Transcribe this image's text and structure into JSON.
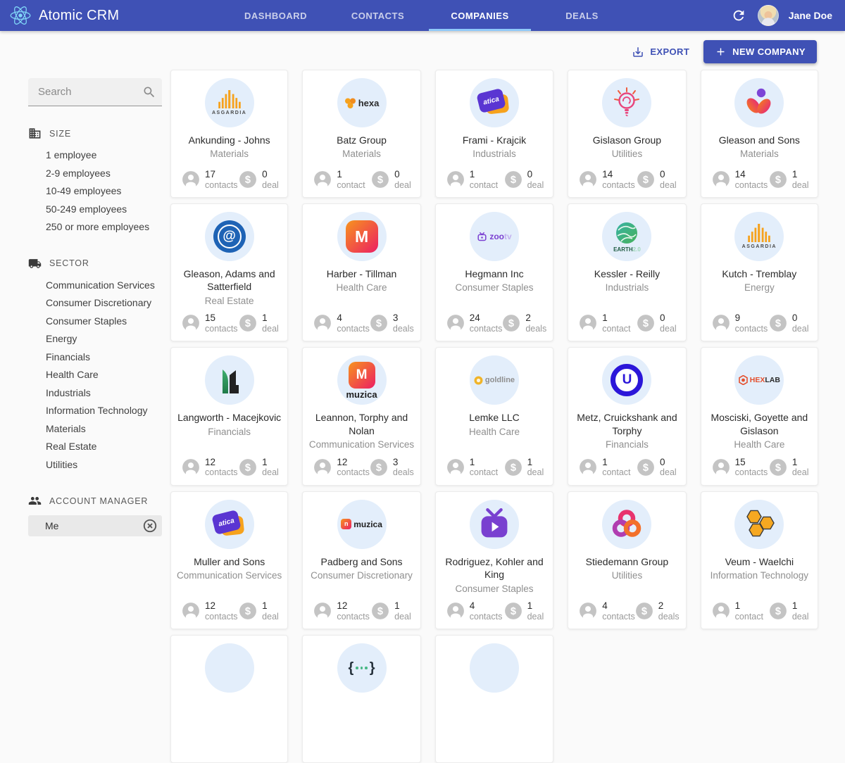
{
  "app": {
    "title": "Atomic CRM",
    "user_name": "Jane Doe"
  },
  "nav": {
    "tabs": [
      {
        "label": "DASHBOARD",
        "active": false
      },
      {
        "label": "CONTACTS",
        "active": false
      },
      {
        "label": "COMPANIES",
        "active": true
      },
      {
        "label": "DEALS",
        "active": false
      }
    ]
  },
  "toolbar": {
    "export_label": "EXPORT",
    "new_company_label": "NEW COMPANY"
  },
  "sidebar": {
    "search_placeholder": "Search",
    "size_section": {
      "title": "SIZE",
      "items": [
        "1 employee",
        "2-9 employees",
        "10-49 employees",
        "50-249 employees",
        "250 or more employees"
      ]
    },
    "sector_section": {
      "title": "SECTOR",
      "items": [
        "Communication Services",
        "Consumer Discretionary",
        "Consumer Staples",
        "Energy",
        "Financials",
        "Health Care",
        "Industrials",
        "Information Technology",
        "Materials",
        "Real Estate",
        "Utilities"
      ]
    },
    "account_manager_section": {
      "title": "ACCOUNT MANAGER",
      "selected_filter": "Me"
    }
  },
  "companies": [
    {
      "name": "Ankunding - Johns",
      "sector": "Materials",
      "contacts": "17",
      "contacts_label": "contacts",
      "deals": "0",
      "deals_label": "deal",
      "logo": "asgardia"
    },
    {
      "name": "Batz Group",
      "sector": "Materials",
      "contacts": "1",
      "contacts_label": "contact",
      "deals": "0",
      "deals_label": "deal",
      "logo": "hexa"
    },
    {
      "name": "Frami - Krajcik",
      "sector": "Industrials",
      "contacts": "1",
      "contacts_label": "contact",
      "deals": "0",
      "deals_label": "deal",
      "logo": "atica"
    },
    {
      "name": "Gislason Group",
      "sector": "Utilities",
      "contacts": "14",
      "contacts_label": "contacts",
      "deals": "0",
      "deals_label": "deal",
      "logo": "bulb"
    },
    {
      "name": "Gleason and Sons",
      "sector": "Materials",
      "contacts": "14",
      "contacts_label": "contacts",
      "deals": "1",
      "deals_label": "deal",
      "logo": "flower"
    },
    {
      "name": "Gleason, Adams and Satterfield",
      "sector": "Real Estate",
      "contacts": "15",
      "contacts_label": "contacts",
      "deals": "1",
      "deals_label": "deal",
      "logo": "gear-a"
    },
    {
      "name": "Harber - Tillman",
      "sector": "Health Care",
      "contacts": "4",
      "contacts_label": "contacts",
      "deals": "3",
      "deals_label": "deals",
      "logo": "muzica"
    },
    {
      "name": "Hegmann Inc",
      "sector": "Consumer Staples",
      "contacts": "24",
      "contacts_label": "contacts",
      "deals": "2",
      "deals_label": "deals",
      "logo": "zootv-text"
    },
    {
      "name": "Kessler - Reilly",
      "sector": "Industrials",
      "contacts": "1",
      "contacts_label": "contact",
      "deals": "0",
      "deals_label": "deal",
      "logo": "earth"
    },
    {
      "name": "Kutch - Tremblay",
      "sector": "Energy",
      "contacts": "9",
      "contacts_label": "contacts",
      "deals": "0",
      "deals_label": "deal",
      "logo": "asgardia"
    },
    {
      "name": "Langworth - Macejkovic",
      "sector": "Financials",
      "contacts": "12",
      "contacts_label": "contacts",
      "deals": "1",
      "deals_label": "deal",
      "logo": "buildings"
    },
    {
      "name": "Leannon, Torphy and Nolan",
      "sector": "Communication Services",
      "contacts": "12",
      "contacts_label": "contacts",
      "deals": "3",
      "deals_label": "deals",
      "logo": "muzica-text"
    },
    {
      "name": "Lemke LLC",
      "sector": "Health Care",
      "contacts": "1",
      "contacts_label": "contact",
      "deals": "1",
      "deals_label": "deal",
      "logo": "goldline"
    },
    {
      "name": "Metz, Cruickshank and Torphy",
      "sector": "Financials",
      "contacts": "1",
      "contacts_label": "contact",
      "deals": "0",
      "deals_label": "deal",
      "logo": "u-ring"
    },
    {
      "name": "Mosciski, Goyette and Gislason",
      "sector": "Health Care",
      "contacts": "15",
      "contacts_label": "contacts",
      "deals": "1",
      "deals_label": "deal",
      "logo": "hexlab"
    },
    {
      "name": "Muller and Sons",
      "sector": "Communication Services",
      "contacts": "12",
      "contacts_label": "contacts",
      "deals": "1",
      "deals_label": "deal",
      "logo": "atica"
    },
    {
      "name": "Padberg and Sons",
      "sector": "Consumer Discretionary",
      "contacts": "12",
      "contacts_label": "contacts",
      "deals": "1",
      "deals_label": "deal",
      "logo": "muzica-small"
    },
    {
      "name": "Rodriguez, Kohler and King",
      "sector": "Consumer Staples",
      "contacts": "4",
      "contacts_label": "contacts",
      "deals": "1",
      "deals_label": "deal",
      "logo": "tv"
    },
    {
      "name": "Stiedemann Group",
      "sector": "Utilities",
      "contacts": "4",
      "contacts_label": "contacts",
      "deals": "2",
      "deals_label": "deals",
      "logo": "trefoil"
    },
    {
      "name": "Veum - Waelchi",
      "sector": "Information Technology",
      "contacts": "1",
      "contacts_label": "contact",
      "deals": "1",
      "deals_label": "deal",
      "logo": "hexagons"
    }
  ],
  "partial_cards": [
    {
      "logo": "faint"
    },
    {
      "logo": "braces"
    },
    {
      "logo": "plain"
    }
  ],
  "colors": {
    "appbar": "#3f51b5",
    "accent": "#3f51b5",
    "tab_indicator": "#90caf9",
    "logo_circle_bg": "#e3eefb",
    "page_bg": "#fafafa"
  }
}
